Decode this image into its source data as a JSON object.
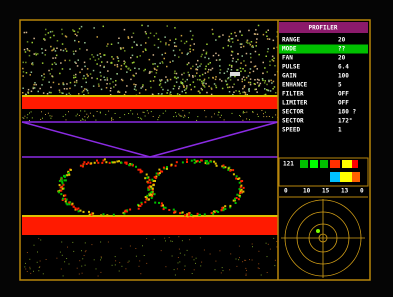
{
  "panel": {
    "title": "PROFILER",
    "params": [
      {
        "label": "RANGE",
        "value": "20"
      },
      {
        "label": "MODE",
        "value": "??"
      },
      {
        "label": "FAN",
        "value": "20"
      },
      {
        "label": "PULSE",
        "value": "6.4"
      },
      {
        "label": "GAIN",
        "value": "100"
      },
      {
        "label": "ENHANCE",
        "value": "5"
      },
      {
        "label": "FILTER",
        "value": "OFF"
      },
      {
        "label": "LIMITER",
        "value": "OFF"
      },
      {
        "label": "SECTOR",
        "value": "180 ?"
      },
      {
        "label": "SECTOR",
        "value": "172°"
      },
      {
        "label": "SPEED",
        "value": "1"
      }
    ],
    "bar_label": "121",
    "scale": [
      "0",
      "10",
      "15",
      "13",
      "0"
    ]
  }
}
